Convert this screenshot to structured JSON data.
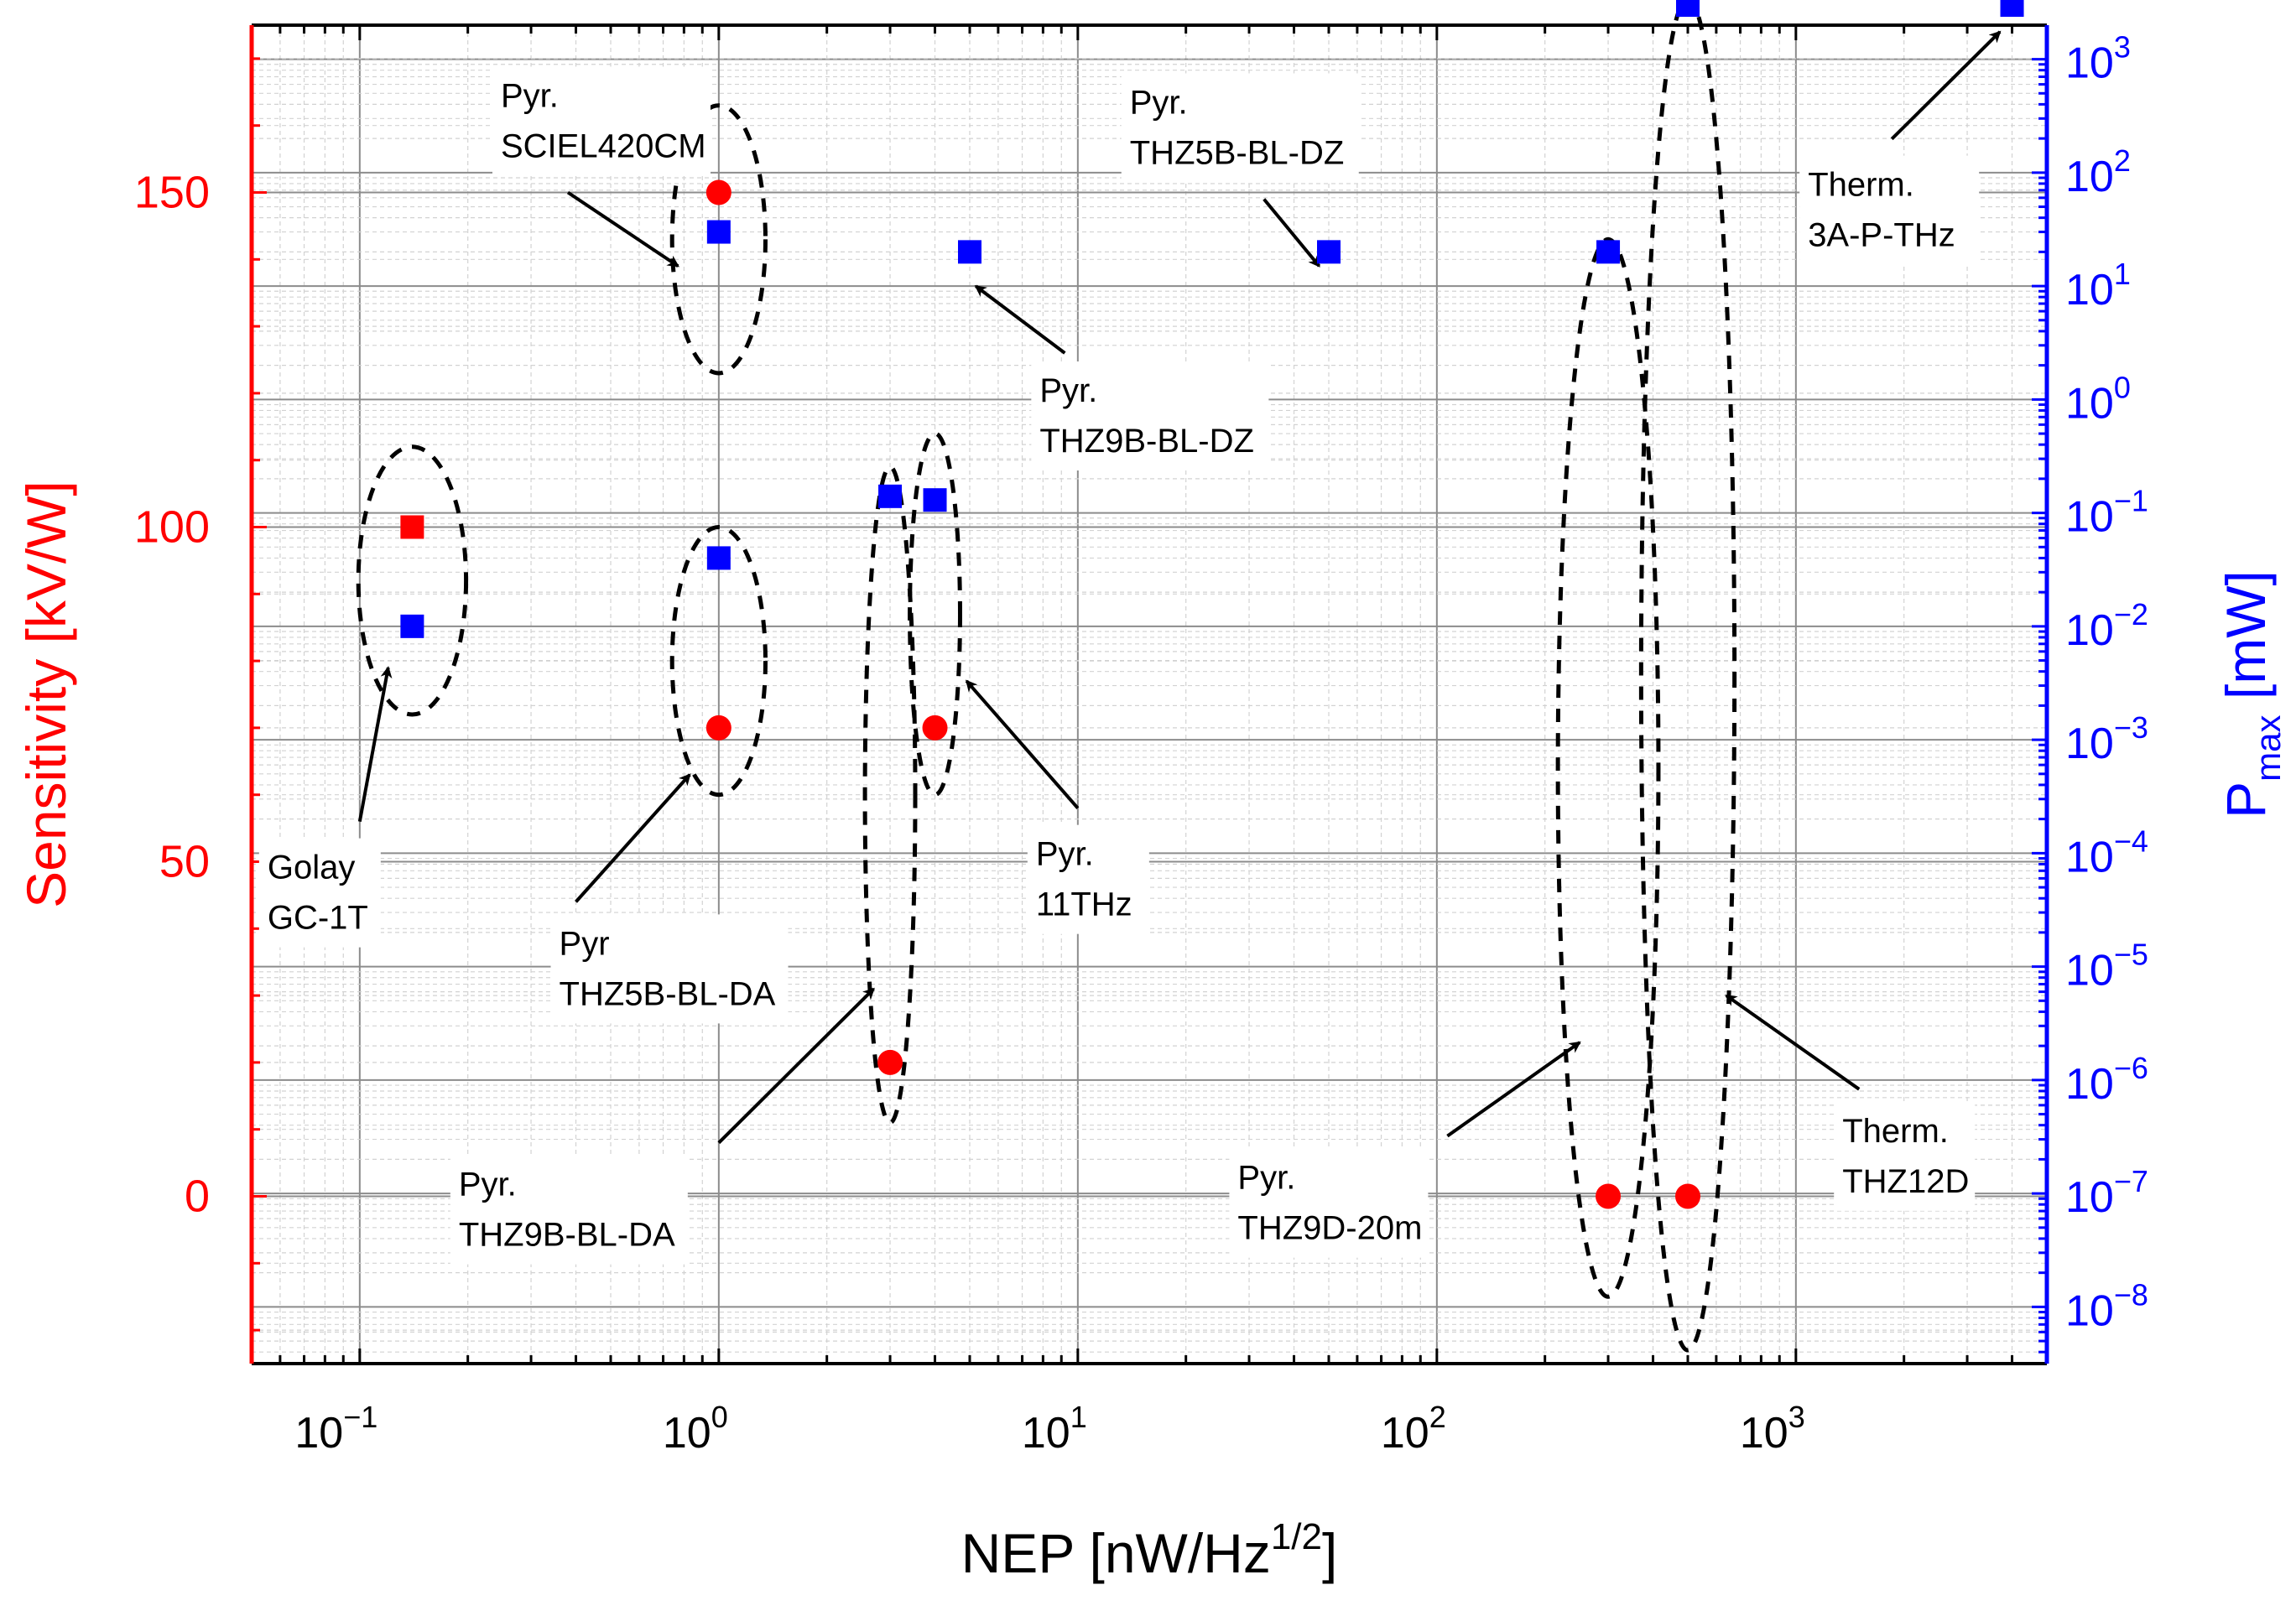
{
  "chart_data": {
    "type": "scatter",
    "x_axis": {
      "label_main": "NEP [nW/Hz",
      "label_sup": "1/2",
      "label_close": "]",
      "scale": "log",
      "xlim": [
        0.05,
        5000
      ],
      "ticks": [
        {
          "base": "10",
          "exp": "−1",
          "value": 0.1
        },
        {
          "base": "10",
          "exp": "0",
          "value": 1
        },
        {
          "base": "10",
          "exp": "1",
          "value": 10
        },
        {
          "base": "10",
          "exp": "2",
          "value": 100
        },
        {
          "base": "10",
          "exp": "3",
          "value": 1000
        }
      ]
    },
    "y_left": {
      "label": "Sensitivity [kV/W]",
      "ylim": [
        -25,
        175
      ],
      "ticks": [
        {
          "value": 0,
          "label": "0"
        },
        {
          "value": 50,
          "label": "50"
        },
        {
          "value": 100,
          "label": "100"
        },
        {
          "value": 150,
          "label": "150"
        }
      ]
    },
    "y_right": {
      "label_main": "P",
      "label_sub": "max",
      "label_unit": " [mW]",
      "scale": "log",
      "ylim_exp": [
        -8.5,
        3.3
      ],
      "ticks": [
        {
          "base": "10",
          "exp": "−8",
          "value_exp": -8
        },
        {
          "base": "10",
          "exp": "−7",
          "value_exp": -7
        },
        {
          "base": "10",
          "exp": "−6",
          "value_exp": -6
        },
        {
          "base": "10",
          "exp": "−5",
          "value_exp": -5
        },
        {
          "base": "10",
          "exp": "−4",
          "value_exp": -4
        },
        {
          "base": "10",
          "exp": "−3",
          "value_exp": -3
        },
        {
          "base": "10",
          "exp": "−2",
          "value_exp": -2
        },
        {
          "base": "10",
          "exp": "−1",
          "value_exp": -1
        },
        {
          "base": "10",
          "exp": "0",
          "value_exp": 0
        },
        {
          "base": "10",
          "exp": "1",
          "value_exp": 1
        },
        {
          "base": "10",
          "exp": "2",
          "value_exp": 2
        },
        {
          "base": "10",
          "exp": "3",
          "value_exp": 3
        }
      ]
    },
    "grid": true,
    "colors": {
      "sensitivity": "#ff0000",
      "pmax": "#0000ff",
      "left_axis": "#ff0000",
      "right_axis": "#0000ff",
      "grid": "#8c8c8c",
      "minor_grid": "#d2d2d2"
    },
    "series": [
      {
        "name": "Sensitivity",
        "axis": "left",
        "unit": "kV/W",
        "points": [
          {
            "detector": "Golay GC-1T",
            "nep": 0.14,
            "value": 100,
            "marker": "square"
          },
          {
            "detector": "Pyr. SCIEL420CM",
            "nep": 1.0,
            "value": 150,
            "marker": "circle"
          },
          {
            "detector": "Pyr THZ5B-BL-DA",
            "nep": 1.0,
            "value": 70,
            "marker": "circle"
          },
          {
            "detector": "Pyr. THZ9B-BL-DA",
            "nep": 3.0,
            "value": 20,
            "marker": "circle"
          },
          {
            "detector": "Pyr. 11THz",
            "nep": 4.0,
            "value": 70,
            "marker": "circle"
          },
          {
            "detector": "Pyr. THZ9D-20m",
            "nep": 300,
            "value": 0,
            "marker": "circle"
          },
          {
            "detector": "Therm. THZ12D",
            "nep": 500,
            "value": 0,
            "marker": "circle"
          }
        ]
      },
      {
        "name": "Pmax",
        "axis": "right",
        "unit": "mW",
        "points": [
          {
            "detector": "Golay GC-1T",
            "nep": 0.14,
            "value": 0.01
          },
          {
            "detector": "Pyr. SCIEL420CM",
            "nep": 1.0,
            "value": 30
          },
          {
            "detector": "Pyr THZ5B-BL-DA",
            "nep": 1.0,
            "value": 0.04
          },
          {
            "detector": "Pyr. THZ9B-BL-DA",
            "nep": 3.0,
            "value": 0.14
          },
          {
            "detector": "Pyr. 11THz",
            "nep": 4.0,
            "value": 0.13
          },
          {
            "detector": "Pyr. THZ9B-BL-DZ",
            "nep": 5.0,
            "value": 20
          },
          {
            "detector": "Pyr. THZ5B-BL-DZ",
            "nep": 50,
            "value": 20
          },
          {
            "detector": "Pyr. THZ9D-20m",
            "nep": 300,
            "value": 20
          },
          {
            "detector": "Therm. THZ12D",
            "nep": 500,
            "value": 3000
          },
          {
            "detector": "Therm. 3A-P-THz",
            "nep": 4000,
            "value": 3000
          }
        ]
      }
    ],
    "annotations": [
      {
        "id": "golay",
        "lines": [
          "Golay",
          "GC-1T"
        ],
        "ellipse": {
          "nep": 0.14,
          "sens": 92,
          "w_dec": 0.3,
          "h_sens": 40
        },
        "arrow_from": {
          "nep": 0.1,
          "sens": 56
        },
        "arrow_to": {
          "nep": 0.12,
          "sens": 79
        }
      },
      {
        "id": "sciel",
        "lines": [
          "Pyr.",
          "SCIEL420CM"
        ],
        "ellipse": {
          "nep": 1.0,
          "sens": 143,
          "w_dec": 0.26,
          "h_sens": 40
        },
        "arrow_from": {
          "nep": 0.38,
          "sens": 150
        },
        "arrow_to": {
          "nep": 0.77,
          "sens": 139
        }
      },
      {
        "id": "thz9b-dz",
        "lines": [
          "Pyr.",
          "THZ9B-BL-DZ"
        ],
        "arrow_from": {
          "nep": 9.2,
          "sens": 126
        },
        "arrow_to": {
          "nep": 5.2,
          "sens": 136
        }
      },
      {
        "id": "thz5b-dz",
        "lines": [
          "Pyr.",
          "THZ5B-BL-DZ"
        ],
        "arrow_from": {
          "nep": 33,
          "sens": 149
        },
        "arrow_to": {
          "nep": 47,
          "sens": 139
        }
      },
      {
        "id": "therm-3a",
        "lines": [
          "Therm.",
          "3A-P-THz"
        ],
        "arrow_from": {
          "nep": 1850,
          "sens": 158
        },
        "arrow_to": {
          "nep": 3700,
          "sens": 174
        }
      },
      {
        "id": "thz5b-da",
        "lines": [
          "Pyr",
          "THZ5B-BL-DA"
        ],
        "ellipse": {
          "nep": 1.0,
          "sens": 80,
          "w_dec": 0.26,
          "h_sens": 40
        },
        "arrow_from": {
          "nep": 0.4,
          "sens": 44
        },
        "arrow_to": {
          "nep": 0.83,
          "sens": 63
        }
      },
      {
        "id": "thz9b-da",
        "lines": [
          "Pyr.",
          "THZ9B-BL-DA"
        ],
        "ellipse": {
          "nep": 3.0,
          "sens": 60,
          "w_dec": 0.14,
          "h_sens": 98
        },
        "arrow_from": {
          "nep": 1.0,
          "sens": 8
        },
        "arrow_to": {
          "nep": 2.7,
          "sens": 31
        }
      },
      {
        "id": "11thz",
        "lines": [
          "Pyr.",
          "11THz"
        ],
        "ellipse": {
          "nep": 4.0,
          "sens": 87,
          "w_dec": 0.14,
          "h_sens": 54
        },
        "arrow_from": {
          "nep": 10,
          "sens": 58
        },
        "arrow_to": {
          "nep": 4.9,
          "sens": 77
        }
      },
      {
        "id": "thz9d",
        "lines": [
          "Pyr.",
          "THZ9D-20m"
        ],
        "ellipse": {
          "nep": 300,
          "sens": 64,
          "w_dec": 0.28,
          "h_sens": 158
        },
        "arrow_from": {
          "nep": 107,
          "sens": 9
        },
        "arrow_to": {
          "nep": 250,
          "sens": 23
        }
      },
      {
        "id": "thz12d",
        "lines": [
          "Therm.",
          "THZ12D"
        ],
        "ellipse": {
          "nep": 500,
          "sens": 78,
          "w_dec": 0.26,
          "h_sens": 202
        },
        "arrow_from": {
          "nep": 1500,
          "sens": 16
        },
        "arrow_to": {
          "nep": 640,
          "sens": 30
        }
      }
    ]
  }
}
